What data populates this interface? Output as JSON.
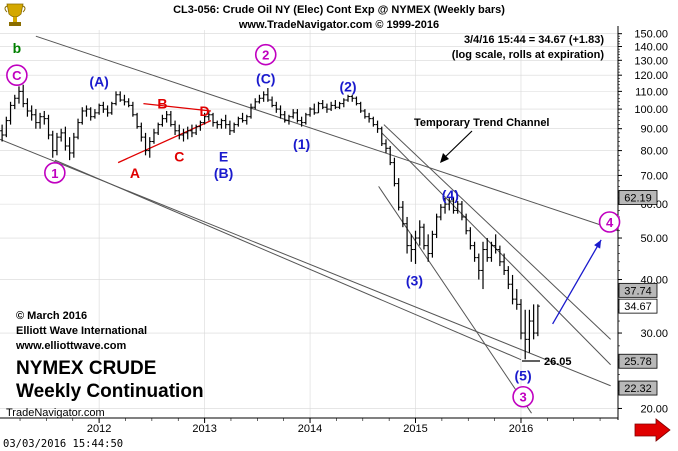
{
  "header": {
    "title": "CL3-056:  Crude Oil NY (Elec) Cont Exp @ NYMEX  (Weekly bars)",
    "site": "www.TradeNavigator.com © 1999-2016",
    "quote_line": "3/4/16 15:44 = 34.67 (+1.83)",
    "note_line": "(log scale, rolls at expiration)"
  },
  "footer": {
    "timestamp": "03/03/2016 15:44:50",
    "brand": "TradeNavigator.com"
  },
  "copyright": {
    "line1": "© March 2016",
    "line2": "Elliott Wave International",
    "line3": "www.elliottwave.com"
  },
  "caption": {
    "line1": "NYMEX CRUDE",
    "line2": "Weekly Continuation"
  },
  "colors": {
    "background": "#ffffff",
    "bars": "#000000",
    "magenta": "#c000c0",
    "blue": "#1a1acd",
    "red": "#e00000",
    "green": "#008000",
    "gold": "#d4a800",
    "arrow_red": "#e00000",
    "channel": "#555555"
  },
  "icons": {
    "logo": "trophy-logo-icon",
    "scroll": "red-arrow-right-icon"
  },
  "chart_data": {
    "type": "ohlc",
    "scale": "log",
    "ylim": [
      19,
      153
    ],
    "xlim": [
      2011.06,
      2016.92
    ],
    "x_ticks": [
      "2012",
      "2013",
      "2014",
      "2015",
      "2016"
    ],
    "y_ticks": [
      "150.00",
      "140.00",
      "130.00",
      "120.00",
      "110.00",
      "100.00",
      "90.00",
      "80.00",
      "70.00",
      "60.00",
      "50.00",
      "40.00",
      "30.00",
      "20.00"
    ],
    "price_boxes": [
      "62.19",
      "37.74",
      "34.67",
      "25.78",
      "22.32"
    ],
    "low_callout": "26.05",
    "annotations": {
      "trend_channel": "Temporary Trend Channel"
    },
    "wave_labels": [
      {
        "text": "b",
        "color": "green",
        "x": 2011.22,
        "y": 139
      },
      {
        "text": "C",
        "color": "magenta",
        "circled": true,
        "x": 2011.22,
        "y": 120
      },
      {
        "text": "1",
        "color": "magenta",
        "circled": true,
        "x": 2011.58,
        "y": 71
      },
      {
        "text": "(A)",
        "color": "blue",
        "x": 2012.0,
        "y": 116
      },
      {
        "text": "B",
        "color": "red",
        "x": 2012.6,
        "y": 103
      },
      {
        "text": "D",
        "color": "red",
        "x": 2013.0,
        "y": 99
      },
      {
        "text": "C",
        "color": "red",
        "x": 2012.76,
        "y": 77.5
      },
      {
        "text": "A",
        "color": "red",
        "x": 2012.34,
        "y": 71
      },
      {
        "text": "E",
        "color": "blue",
        "x": 2013.18,
        "y": 77.5
      },
      {
        "text": "(B)",
        "color": "blue",
        "x": 2013.18,
        "y": 71
      },
      {
        "text": "2",
        "color": "magenta",
        "circled": true,
        "x": 2013.58,
        "y": 134
      },
      {
        "text": "(C)",
        "color": "blue",
        "x": 2013.58,
        "y": 118
      },
      {
        "text": "(1)",
        "color": "blue",
        "x": 2013.92,
        "y": 83
      },
      {
        "text": "(2)",
        "color": "blue",
        "x": 2014.36,
        "y": 113
      },
      {
        "text": "(3)",
        "color": "blue",
        "x": 2014.99,
        "y": 39.8
      },
      {
        "text": "(4)",
        "color": "blue",
        "x": 2015.33,
        "y": 63
      },
      {
        "text": "(5)",
        "color": "blue",
        "x": 2016.02,
        "y": 23.9
      },
      {
        "text": "3",
        "color": "magenta",
        "circled": true,
        "x": 2016.02,
        "y": 21.3
      },
      {
        "text": "4",
        "color": "magenta",
        "circled": true,
        "x": 2016.84,
        "y": 54.5
      }
    ],
    "ohlc": [
      {
        "x": 2011.08,
        "o": 89,
        "h": 92,
        "l": 84,
        "c": 87
      },
      {
        "x": 2011.12,
        "o": 87,
        "h": 96,
        "l": 86,
        "c": 94
      },
      {
        "x": 2011.16,
        "o": 94,
        "h": 104,
        "l": 92,
        "c": 102
      },
      {
        "x": 2011.2,
        "o": 102,
        "h": 108,
        "l": 100,
        "c": 106
      },
      {
        "x": 2011.24,
        "o": 106,
        "h": 113,
        "l": 103,
        "c": 110
      },
      {
        "x": 2011.28,
        "o": 110,
        "h": 114,
        "l": 101,
        "c": 103
      },
      {
        "x": 2011.32,
        "o": 103,
        "h": 106,
        "l": 96,
        "c": 99
      },
      {
        "x": 2011.36,
        "o": 99,
        "h": 102,
        "l": 94,
        "c": 97
      },
      {
        "x": 2011.4,
        "o": 97,
        "h": 100,
        "l": 90,
        "c": 93
      },
      {
        "x": 2011.44,
        "o": 93,
        "h": 98,
        "l": 90,
        "c": 96
      },
      {
        "x": 2011.48,
        "o": 96,
        "h": 99,
        "l": 92,
        "c": 95
      },
      {
        "x": 2011.52,
        "o": 95,
        "h": 97,
        "l": 85,
        "c": 87
      },
      {
        "x": 2011.56,
        "o": 87,
        "h": 89,
        "l": 77,
        "c": 80
      },
      {
        "x": 2011.6,
        "o": 80,
        "h": 88,
        "l": 78,
        "c": 86
      },
      {
        "x": 2011.64,
        "o": 86,
        "h": 90,
        "l": 84,
        "c": 88
      },
      {
        "x": 2011.68,
        "o": 88,
        "h": 91,
        "l": 80,
        "c": 82
      },
      {
        "x": 2011.72,
        "o": 82,
        "h": 86,
        "l": 76,
        "c": 79
      },
      {
        "x": 2011.76,
        "o": 79,
        "h": 88,
        "l": 77,
        "c": 86
      },
      {
        "x": 2011.8,
        "o": 86,
        "h": 95,
        "l": 85,
        "c": 93
      },
      {
        "x": 2011.84,
        "o": 93,
        "h": 101,
        "l": 92,
        "c": 99
      },
      {
        "x": 2011.88,
        "o": 99,
        "h": 102,
        "l": 96,
        "c": 100
      },
      {
        "x": 2011.92,
        "o": 100,
        "h": 101,
        "l": 94,
        "c": 96
      },
      {
        "x": 2011.96,
        "o": 96,
        "h": 100,
        "l": 95,
        "c": 98
      },
      {
        "x": 2012.0,
        "o": 98,
        "h": 103,
        "l": 97,
        "c": 102
      },
      {
        "x": 2012.04,
        "o": 102,
        "h": 104,
        "l": 98,
        "c": 100
      },
      {
        "x": 2012.08,
        "o": 100,
        "h": 102,
        "l": 96,
        "c": 98
      },
      {
        "x": 2012.12,
        "o": 98,
        "h": 104,
        "l": 97,
        "c": 103
      },
      {
        "x": 2012.16,
        "o": 103,
        "h": 110,
        "l": 102,
        "c": 108
      },
      {
        "x": 2012.2,
        "o": 108,
        "h": 110,
        "l": 104,
        "c": 105
      },
      {
        "x": 2012.24,
        "o": 105,
        "h": 108,
        "l": 102,
        "c": 104
      },
      {
        "x": 2012.28,
        "o": 104,
        "h": 106,
        "l": 101,
        "c": 102
      },
      {
        "x": 2012.32,
        "o": 102,
        "h": 104,
        "l": 96,
        "c": 97
      },
      {
        "x": 2012.36,
        "o": 97,
        "h": 98,
        "l": 90,
        "c": 91
      },
      {
        "x": 2012.4,
        "o": 91,
        "h": 93,
        "l": 84,
        "c": 86
      },
      {
        "x": 2012.44,
        "o": 86,
        "h": 88,
        "l": 78,
        "c": 80
      },
      {
        "x": 2012.48,
        "o": 80,
        "h": 86,
        "l": 77,
        "c": 84
      },
      {
        "x": 2012.52,
        "o": 84,
        "h": 90,
        "l": 83,
        "c": 88
      },
      {
        "x": 2012.56,
        "o": 88,
        "h": 93,
        "l": 87,
        "c": 92
      },
      {
        "x": 2012.6,
        "o": 92,
        "h": 97,
        "l": 91,
        "c": 95
      },
      {
        "x": 2012.64,
        "o": 95,
        "h": 99,
        "l": 93,
        "c": 97
      },
      {
        "x": 2012.68,
        "o": 97,
        "h": 99,
        "l": 91,
        "c": 92
      },
      {
        "x": 2012.72,
        "o": 92,
        "h": 94,
        "l": 87,
        "c": 89
      },
      {
        "x": 2012.76,
        "o": 89,
        "h": 92,
        "l": 85,
        "c": 87
      },
      {
        "x": 2012.8,
        "o": 87,
        "h": 90,
        "l": 84,
        "c": 88
      },
      {
        "x": 2012.84,
        "o": 88,
        "h": 91,
        "l": 85,
        "c": 89
      },
      {
        "x": 2012.88,
        "o": 89,
        "h": 92,
        "l": 86,
        "c": 88
      },
      {
        "x": 2012.92,
        "o": 88,
        "h": 92,
        "l": 87,
        "c": 91
      },
      {
        "x": 2012.96,
        "o": 91,
        "h": 94,
        "l": 89,
        "c": 93
      },
      {
        "x": 2013.0,
        "o": 93,
        "h": 98,
        "l": 92,
        "c": 96
      },
      {
        "x": 2013.04,
        "o": 96,
        "h": 99,
        "l": 94,
        "c": 97
      },
      {
        "x": 2013.08,
        "o": 97,
        "h": 98,
        "l": 91,
        "c": 93
      },
      {
        "x": 2013.12,
        "o": 93,
        "h": 94,
        "l": 90,
        "c": 92
      },
      {
        "x": 2013.16,
        "o": 92,
        "h": 95,
        "l": 90,
        "c": 94
      },
      {
        "x": 2013.2,
        "o": 94,
        "h": 97,
        "l": 90,
        "c": 92
      },
      {
        "x": 2013.24,
        "o": 92,
        "h": 94,
        "l": 87,
        "c": 89
      },
      {
        "x": 2013.28,
        "o": 89,
        "h": 93,
        "l": 88,
        "c": 92
      },
      {
        "x": 2013.32,
        "o": 92,
        "h": 96,
        "l": 91,
        "c": 95
      },
      {
        "x": 2013.36,
        "o": 95,
        "h": 98,
        "l": 93,
        "c": 94
      },
      {
        "x": 2013.4,
        "o": 94,
        "h": 97,
        "l": 92,
        "c": 96
      },
      {
        "x": 2013.44,
        "o": 96,
        "h": 103,
        "l": 95,
        "c": 101
      },
      {
        "x": 2013.48,
        "o": 101,
        "h": 106,
        "l": 100,
        "c": 104
      },
      {
        "x": 2013.52,
        "o": 104,
        "h": 108,
        "l": 103,
        "c": 106
      },
      {
        "x": 2013.56,
        "o": 106,
        "h": 110,
        "l": 104,
        "c": 108
      },
      {
        "x": 2013.6,
        "o": 108,
        "h": 112,
        "l": 104,
        "c": 105
      },
      {
        "x": 2013.64,
        "o": 105,
        "h": 107,
        "l": 101,
        "c": 102
      },
      {
        "x": 2013.68,
        "o": 102,
        "h": 104,
        "l": 98,
        "c": 100
      },
      {
        "x": 2013.72,
        "o": 100,
        "h": 102,
        "l": 95,
        "c": 97
      },
      {
        "x": 2013.76,
        "o": 97,
        "h": 99,
        "l": 93,
        "c": 94
      },
      {
        "x": 2013.8,
        "o": 94,
        "h": 97,
        "l": 92,
        "c": 96
      },
      {
        "x": 2013.84,
        "o": 96,
        "h": 100,
        "l": 95,
        "c": 98
      },
      {
        "x": 2013.88,
        "o": 98,
        "h": 100,
        "l": 93,
        "c": 94
      },
      {
        "x": 2013.92,
        "o": 94,
        "h": 96,
        "l": 91,
        "c": 93
      },
      {
        "x": 2013.96,
        "o": 93,
        "h": 98,
        "l": 92,
        "c": 97
      },
      {
        "x": 2014.0,
        "o": 97,
        "h": 101,
        "l": 96,
        "c": 100
      },
      {
        "x": 2014.04,
        "o": 100,
        "h": 103,
        "l": 97,
        "c": 98
      },
      {
        "x": 2014.08,
        "o": 98,
        "h": 104,
        "l": 98,
        "c": 103
      },
      {
        "x": 2014.12,
        "o": 103,
        "h": 105,
        "l": 100,
        "c": 101
      },
      {
        "x": 2014.16,
        "o": 101,
        "h": 103,
        "l": 98,
        "c": 100
      },
      {
        "x": 2014.2,
        "o": 100,
        "h": 104,
        "l": 99,
        "c": 102
      },
      {
        "x": 2014.24,
        "o": 102,
        "h": 105,
        "l": 100,
        "c": 101
      },
      {
        "x": 2014.28,
        "o": 101,
        "h": 104,
        "l": 100,
        "c": 103
      },
      {
        "x": 2014.32,
        "o": 103,
        "h": 106,
        "l": 101,
        "c": 105
      },
      {
        "x": 2014.36,
        "o": 105,
        "h": 108,
        "l": 104,
        "c": 107
      },
      {
        "x": 2014.4,
        "o": 107,
        "h": 108,
        "l": 104,
        "c": 106
      },
      {
        "x": 2014.44,
        "o": 106,
        "h": 107,
        "l": 102,
        "c": 103
      },
      {
        "x": 2014.48,
        "o": 103,
        "h": 104,
        "l": 98,
        "c": 99
      },
      {
        "x": 2014.52,
        "o": 99,
        "h": 100,
        "l": 95,
        "c": 96
      },
      {
        "x": 2014.56,
        "o": 96,
        "h": 98,
        "l": 93,
        "c": 95
      },
      {
        "x": 2014.6,
        "o": 95,
        "h": 96,
        "l": 91,
        "c": 92
      },
      {
        "x": 2014.64,
        "o": 92,
        "h": 94,
        "l": 88,
        "c": 90
      },
      {
        "x": 2014.68,
        "o": 90,
        "h": 91,
        "l": 82,
        "c": 83
      },
      {
        "x": 2014.72,
        "o": 83,
        "h": 85,
        "l": 79,
        "c": 81
      },
      {
        "x": 2014.76,
        "o": 81,
        "h": 82,
        "l": 74,
        "c": 75
      },
      {
        "x": 2014.8,
        "o": 75,
        "h": 77,
        "l": 66,
        "c": 67
      },
      {
        "x": 2014.84,
        "o": 67,
        "h": 69,
        "l": 58,
        "c": 59
      },
      {
        "x": 2014.88,
        "o": 59,
        "h": 61,
        "l": 53,
        "c": 54
      },
      {
        "x": 2014.92,
        "o": 54,
        "h": 56,
        "l": 46,
        "c": 48
      },
      {
        "x": 2014.96,
        "o": 48,
        "h": 51,
        "l": 44,
        "c": 47
      },
      {
        "x": 2015.0,
        "o": 47,
        "h": 52,
        "l": 43.5,
        "c": 50
      },
      {
        "x": 2015.04,
        "o": 50,
        "h": 55,
        "l": 48,
        "c": 53
      },
      {
        "x": 2015.08,
        "o": 53,
        "h": 54,
        "l": 47,
        "c": 48
      },
      {
        "x": 2015.12,
        "o": 48,
        "h": 51,
        "l": 44,
        "c": 46
      },
      {
        "x": 2015.16,
        "o": 46,
        "h": 52,
        "l": 45,
        "c": 51
      },
      {
        "x": 2015.2,
        "o": 51,
        "h": 57,
        "l": 50,
        "c": 56
      },
      {
        "x": 2015.24,
        "o": 56,
        "h": 60,
        "l": 55,
        "c": 59
      },
      {
        "x": 2015.28,
        "o": 59,
        "h": 62,
        "l": 57,
        "c": 60
      },
      {
        "x": 2015.32,
        "o": 60,
        "h": 62,
        "l": 58,
        "c": 61
      },
      {
        "x": 2015.36,
        "o": 61,
        "h": 62,
        "l": 57,
        "c": 58
      },
      {
        "x": 2015.4,
        "o": 58,
        "h": 61,
        "l": 57,
        "c": 60
      },
      {
        "x": 2015.44,
        "o": 60,
        "h": 61,
        "l": 55,
        "c": 56
      },
      {
        "x": 2015.48,
        "o": 56,
        "h": 57,
        "l": 51,
        "c": 52
      },
      {
        "x": 2015.52,
        "o": 52,
        "h": 53,
        "l": 47,
        "c": 48
      },
      {
        "x": 2015.56,
        "o": 48,
        "h": 49,
        "l": 44,
        "c": 45
      },
      {
        "x": 2015.6,
        "o": 45,
        "h": 46,
        "l": 40,
        "c": 42
      },
      {
        "x": 2015.64,
        "o": 42,
        "h": 49,
        "l": 38,
        "c": 47
      },
      {
        "x": 2015.68,
        "o": 47,
        "h": 50,
        "l": 44,
        "c": 45
      },
      {
        "x": 2015.72,
        "o": 45,
        "h": 49,
        "l": 44,
        "c": 48
      },
      {
        "x": 2015.76,
        "o": 48,
        "h": 51,
        "l": 46,
        "c": 47
      },
      {
        "x": 2015.8,
        "o": 47,
        "h": 48,
        "l": 43,
        "c": 44
      },
      {
        "x": 2015.84,
        "o": 44,
        "h": 46,
        "l": 41,
        "c": 42
      },
      {
        "x": 2015.88,
        "o": 42,
        "h": 43,
        "l": 38,
        "c": 39
      },
      {
        "x": 2015.92,
        "o": 39,
        "h": 41,
        "l": 35,
        "c": 36
      },
      {
        "x": 2015.96,
        "o": 36,
        "h": 38,
        "l": 34,
        "c": 35
      },
      {
        "x": 2016.0,
        "o": 35,
        "h": 36,
        "l": 29,
        "c": 30
      },
      {
        "x": 2016.04,
        "o": 30,
        "h": 34,
        "l": 26.05,
        "c": 29
      },
      {
        "x": 2016.08,
        "o": 29,
        "h": 34,
        "l": 27,
        "c": 32
      },
      {
        "x": 2016.12,
        "o": 32,
        "h": 35,
        "l": 29,
        "c": 30
      },
      {
        "x": 2016.16,
        "o": 30,
        "h": 35,
        "l": 29.5,
        "c": 34.67
      }
    ],
    "trendlines": [
      {
        "name": "upper-channel",
        "color": "channel",
        "x1": 2011.4,
        "y1": 148,
        "x2": 2016.92,
        "y2": 52
      },
      {
        "name": "lower-channel",
        "color": "channel",
        "x1": 2011.06,
        "y1": 85,
        "x2": 2016.85,
        "y2": 22.6
      },
      {
        "name": "wave1-lower",
        "color": "channel",
        "x1": 2011.58,
        "y1": 76,
        "x2": 2016.0,
        "y2": 26
      },
      {
        "name": "temp-upper",
        "color": "channel",
        "x1": 2014.68,
        "y1": 88,
        "x2": 2016.85,
        "y2": 25.3
      },
      {
        "name": "temp-lower",
        "color": "channel",
        "x1": 2014.65,
        "y1": 66,
        "x2": 2016.1,
        "y2": 19.5
      },
      {
        "name": "temp-steep",
        "color": "channel",
        "x1": 2014.7,
        "y1": 92,
        "x2": 2016.85,
        "y2": 29
      },
      {
        "name": "triangle-upper",
        "color": "red",
        "x1": 2012.42,
        "y1": 103,
        "x2": 2013.06,
        "y2": 99
      },
      {
        "name": "triangle-lower",
        "color": "red",
        "x1": 2012.18,
        "y1": 75,
        "x2": 2013.06,
        "y2": 94
      }
    ],
    "projection": {
      "color": "blue",
      "x1": 2016.3,
      "y1": 31.5,
      "x2": 2016.76,
      "y2": 49.5
    }
  }
}
